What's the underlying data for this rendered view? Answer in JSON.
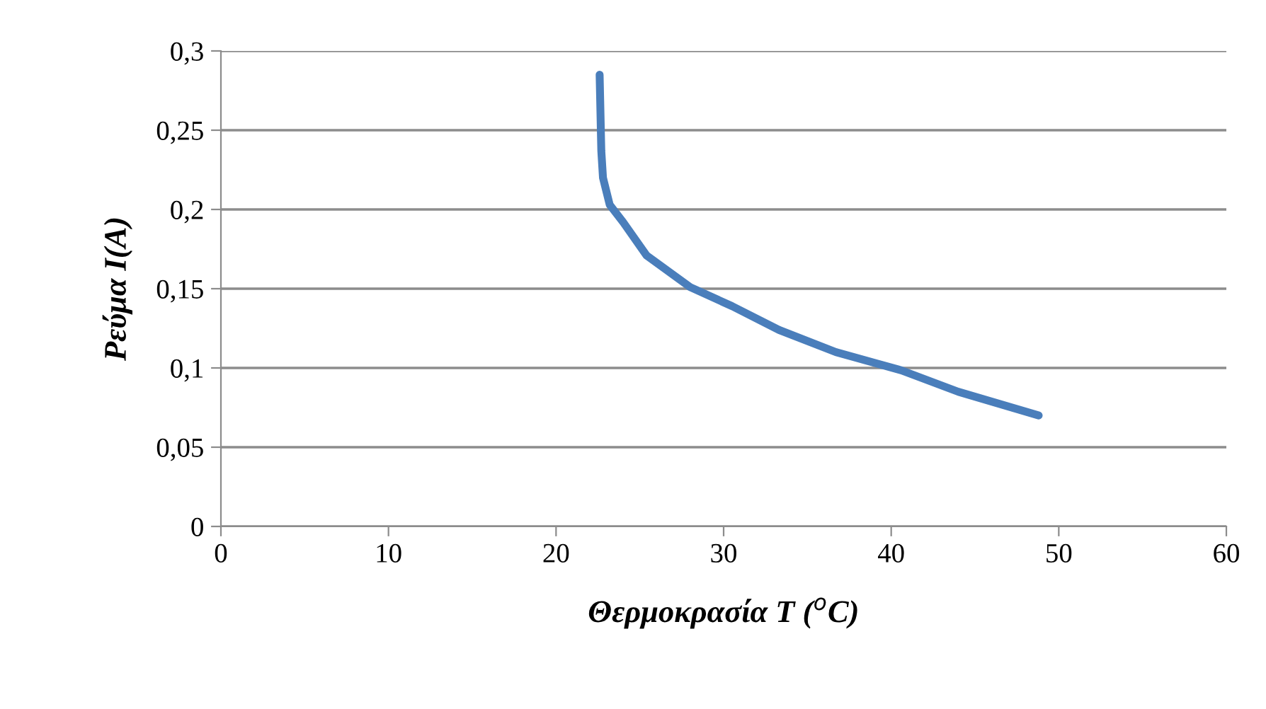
{
  "chart_data": {
    "type": "line",
    "xlabel": "Θερμοκρασία T ($^{o}$C)",
    "ylabel": "Ρεύμα I(A)",
    "series": [
      {
        "color": "#4a7ebb",
        "x": [
          22.6,
          22.7,
          22.8,
          23.2,
          24.0,
          25.4,
          28.0,
          30.5,
          33.3,
          36.7,
          40.6,
          44.0,
          48.8
        ],
        "values": [
          0.285,
          0.237,
          0.22,
          0.203,
          0.192,
          0.171,
          0.151,
          0.139,
          0.124,
          0.11,
          0.0985,
          0.085,
          0.07
        ]
      }
    ],
    "xlim": [
      0,
      60
    ],
    "xticks": [
      0,
      10,
      20,
      30,
      40,
      50,
      60
    ],
    "ylim": [
      0,
      0.3
    ],
    "yticks": [
      {
        "value": 0,
        "label": "0"
      },
      {
        "value": 0.05,
        "label": "0,05"
      },
      {
        "value": 0.1,
        "label": "0,1"
      },
      {
        "value": 0.15,
        "label": "0,15"
      },
      {
        "value": 0.2,
        "label": "0,2"
      },
      {
        "value": 0.25,
        "label": "0,25"
      },
      {
        "value": 0.3,
        "label": "0,3"
      }
    ],
    "grid": "y",
    "marker": "none",
    "line_style": "solid",
    "legend": false
  }
}
